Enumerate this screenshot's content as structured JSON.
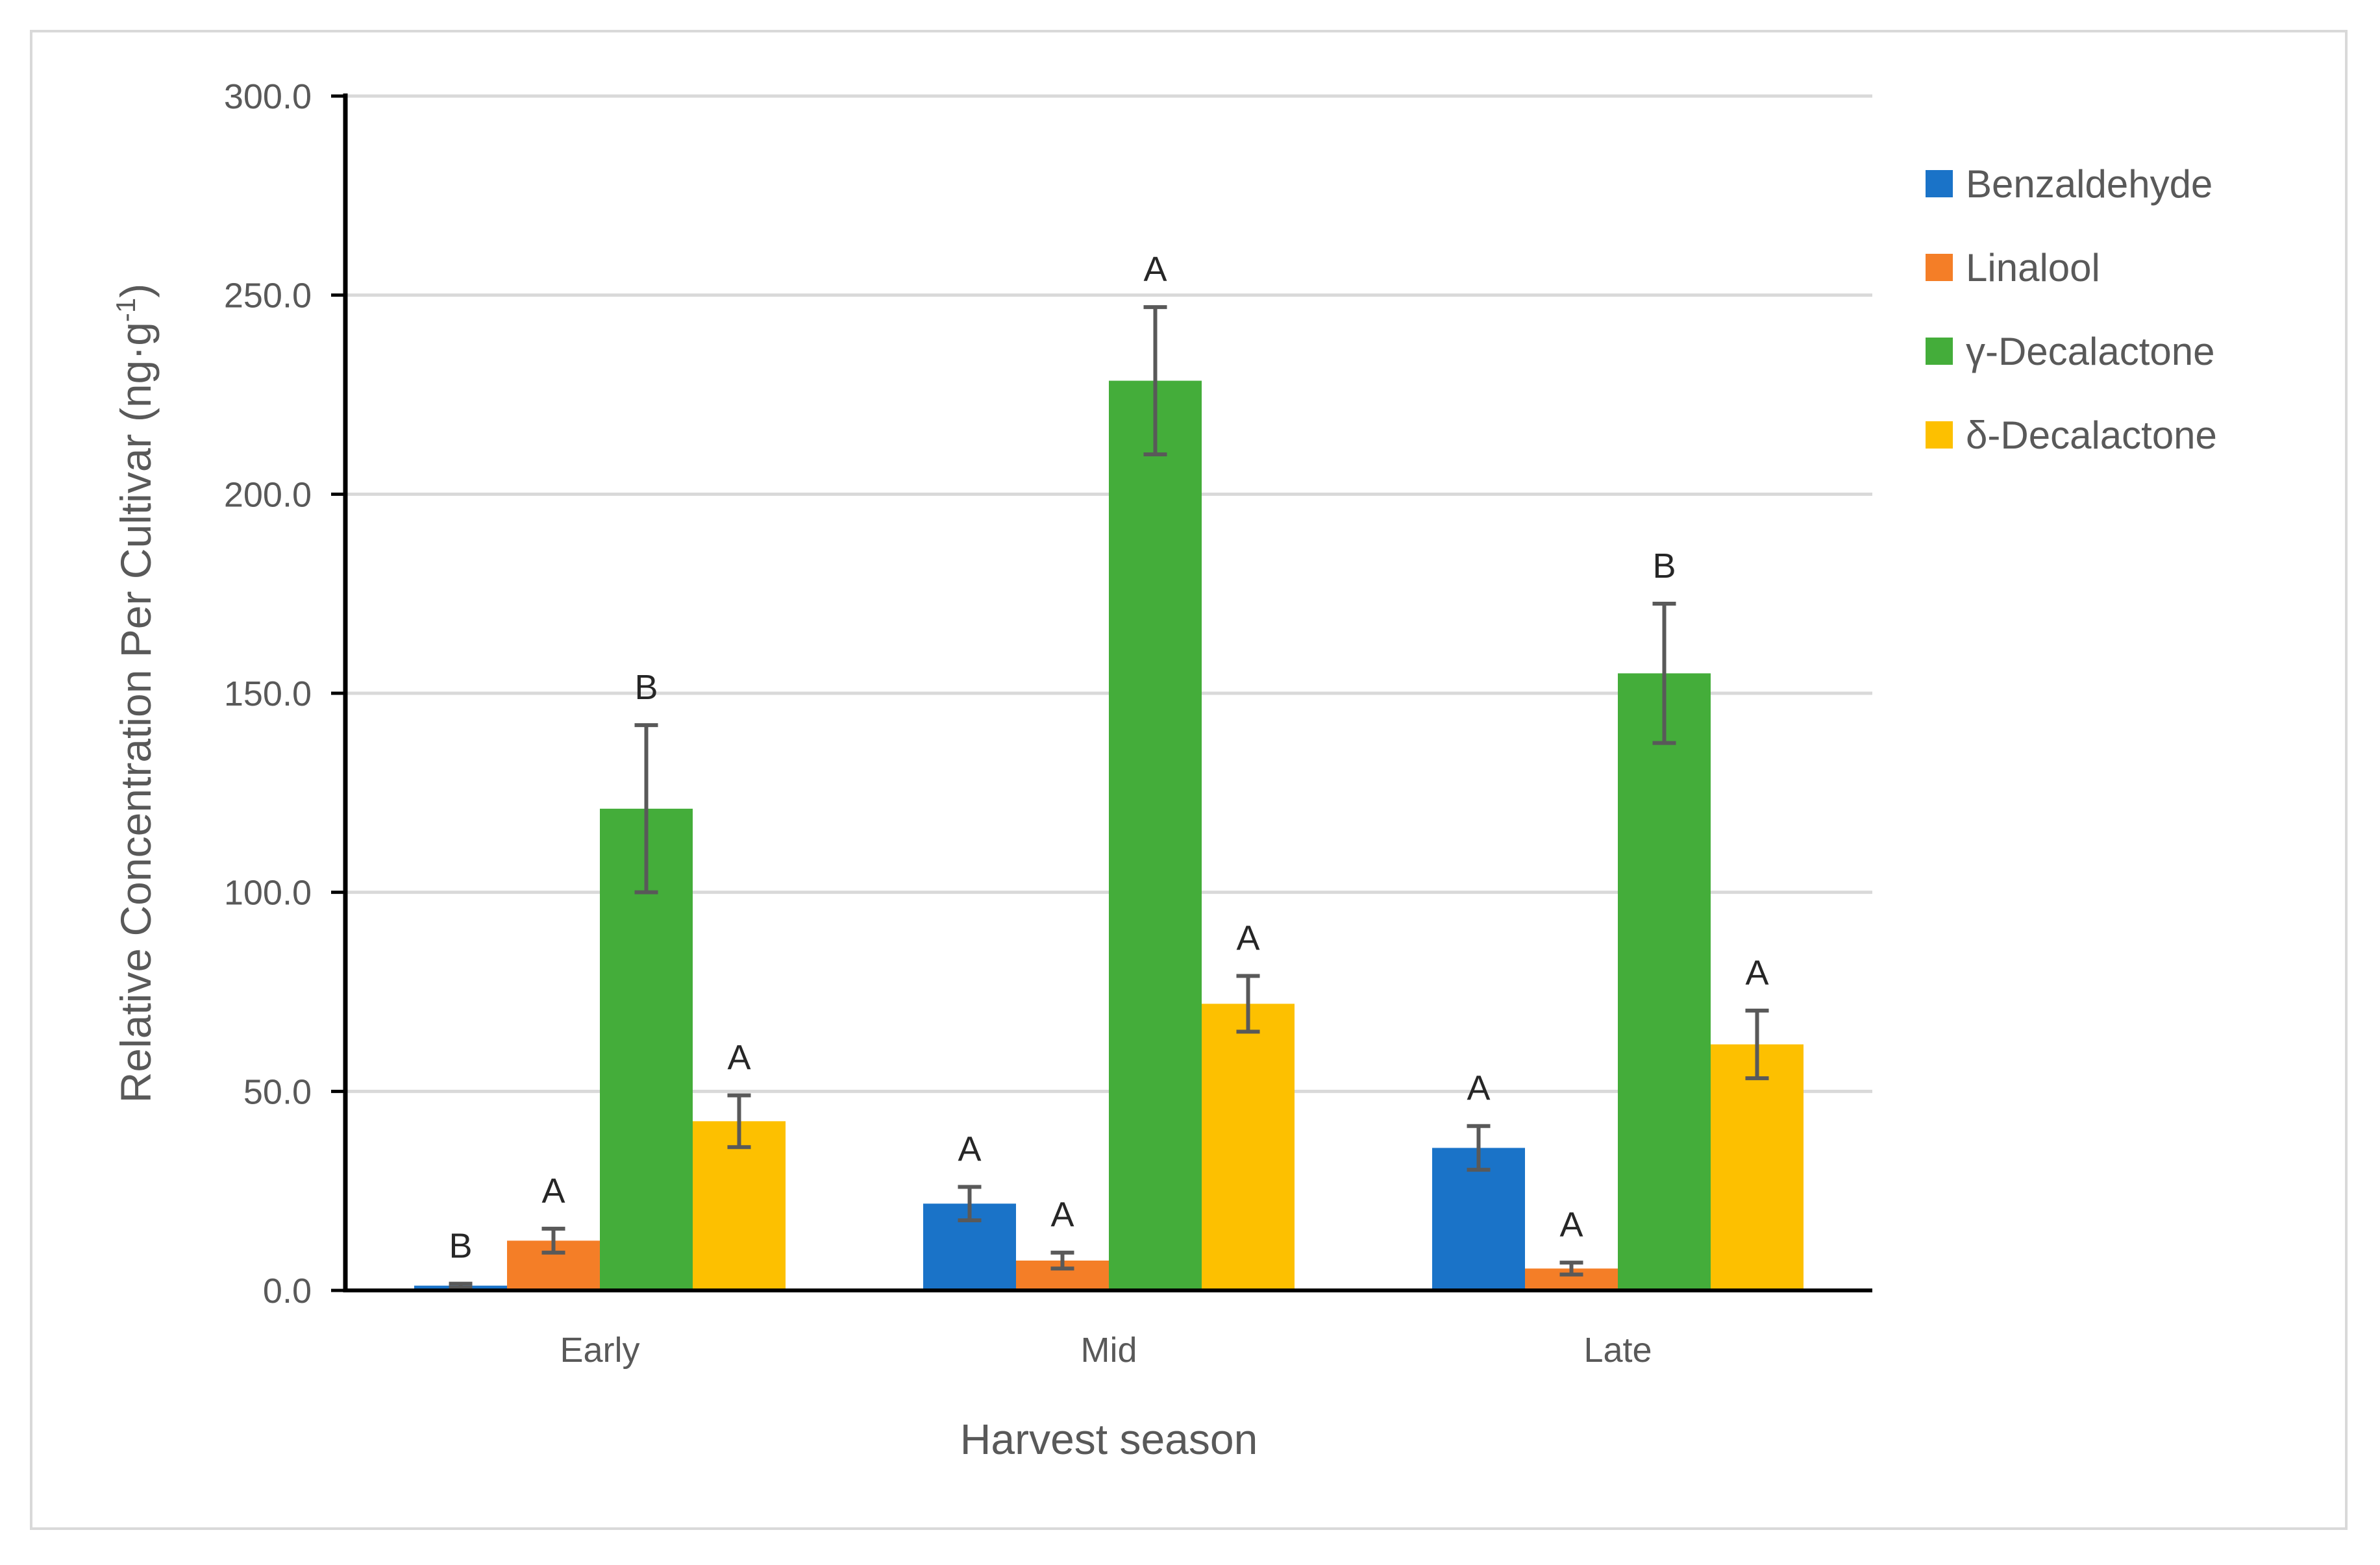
{
  "chart_data": {
    "type": "bar",
    "categories": [
      "Early",
      "Mid",
      "Late"
    ],
    "xlabel": "Harvest season",
    "ylabel": "Relative Concentration Per Cultivar (ng·g",
    "ylabel_superscript": "-1",
    "ylabel_suffix": ")",
    "ylim": [
      0,
      300
    ],
    "yticks": [
      0,
      50,
      100,
      150,
      200,
      250,
      300
    ],
    "ytick_labels": [
      "0.0",
      "50.0",
      "100.0",
      "150.0",
      "200.0",
      "250.0",
      "300.0"
    ],
    "grid": true,
    "legend_position": "right",
    "series": [
      {
        "name": "Benzaldehyde",
        "color": "#1a73c8",
        "values": [
          1.2,
          21.8,
          35.8
        ],
        "errors": [
          0.5,
          4.2,
          5.5
        ],
        "letters": [
          "B",
          "A",
          "A"
        ]
      },
      {
        "name": "Linalool",
        "color": "#f47e27",
        "values": [
          12.5,
          7.5,
          5.5
        ],
        "errors": [
          3.0,
          2.0,
          1.5
        ],
        "letters": [
          "A",
          "A",
          "A"
        ]
      },
      {
        "name": "γ-Decalactone",
        "color": "#44ad3a",
        "values": [
          121.0,
          228.5,
          155.0
        ],
        "errors": [
          21.0,
          18.5,
          17.5
        ],
        "letters": [
          "B",
          "A",
          "B"
        ]
      },
      {
        "name": "δ-Decalactone",
        "color": "#fdc000",
        "values": [
          42.5,
          72.0,
          61.8
        ],
        "errors": [
          6.5,
          7.0,
          8.5
        ],
        "letters": [
          "A",
          "A",
          "A"
        ]
      }
    ]
  }
}
